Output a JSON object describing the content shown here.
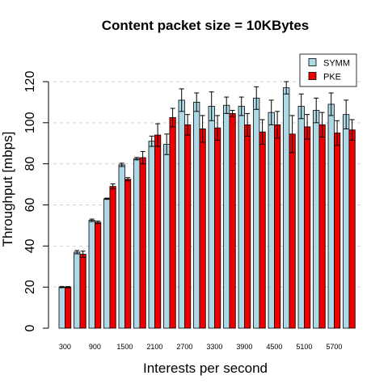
{
  "chart_data": {
    "type": "bar",
    "title": "Content packet size = 10KBytes",
    "xlabel": "Interests per second",
    "ylabel": "Throughput [mbps]",
    "ylim": [
      0,
      120
    ],
    "yticks": [
      0,
      20,
      40,
      60,
      80,
      100,
      120
    ],
    "grid": "horizontal dashed",
    "legend_position": "top-right",
    "categories": [
      300,
      600,
      900,
      1200,
      1500,
      1800,
      2100,
      2400,
      2700,
      3000,
      3300,
      3600,
      3900,
      4200,
      4500,
      4800,
      5100,
      5400,
      5700,
      6000
    ],
    "category_labels": [
      "300",
      "",
      "900",
      "",
      "1500",
      "",
      "2100",
      "",
      "2700",
      "",
      "3300",
      "",
      "3900",
      "",
      "4500",
      "",
      "5100",
      "",
      "5700",
      ""
    ],
    "series": [
      {
        "name": "SYMM",
        "color": "#add8e6",
        "values": [
          20,
          37,
          52.5,
          63,
          79.5,
          82.5,
          91,
          89.5,
          111,
          110,
          108,
          108.5,
          108,
          112,
          105,
          117,
          108,
          106,
          109,
          104
        ],
        "err": [
          0.3,
          0.8,
          0.6,
          0.3,
          0.8,
          0.6,
          2.5,
          5,
          5.5,
          4.5,
          7,
          4,
          4.5,
          5.5,
          6,
          3,
          6,
          6,
          5.5,
          7
        ]
      },
      {
        "name": "PKE",
        "color": "#ee0000",
        "values": [
          20,
          36,
          51.5,
          69,
          72.5,
          83,
          94,
          102.5,
          99,
          97,
          97.5,
          104.5,
          99,
          95.5,
          99,
          94.5,
          98,
          99,
          95,
          96.5
        ],
        "err": [
          0.3,
          1.5,
          0.6,
          1.2,
          0.8,
          3,
          5.5,
          4.5,
          5,
          6.5,
          6,
          1.5,
          5.5,
          6,
          6.5,
          9,
          6,
          6,
          6,
          5
        ]
      }
    ]
  }
}
